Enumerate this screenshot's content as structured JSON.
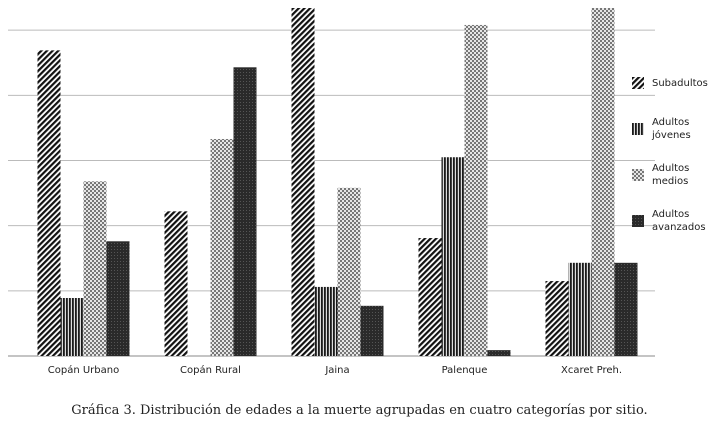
{
  "chart_data": {
    "type": "bar",
    "title": "Gráfica 3. Distribución de edades a la muerte agrupadas en cuatro categorías por sitio.",
    "categories": [
      "Copán Urbano",
      "Copán Rural",
      "Jaina",
      "Palenque",
      "Xcaret Preh."
    ],
    "series": [
      {
        "name": "Subadultos",
        "color": "#111111",
        "values": [
          4.69,
          2.22,
          5.34,
          1.81,
          1.15
        ]
      },
      {
        "name": "Adultos jóvenes",
        "color": "#1a1a1a",
        "values": [
          0.89,
          0,
          1.06,
          3.05,
          1.43
        ]
      },
      {
        "name": "Adultos medios",
        "color": "#777777",
        "values": [
          2.68,
          3.33,
          2.58,
          5.08,
          5.34
        ]
      },
      {
        "name": "Adultos avanzados",
        "color": "#2a2a2a",
        "values": [
          1.76,
          4.43,
          0.77,
          0.09,
          1.43
        ]
      }
    ],
    "ylim": [
      0,
      5.34
    ],
    "yticks": [
      0,
      1,
      2,
      3,
      4,
      5
    ],
    "grid": true
  }
}
